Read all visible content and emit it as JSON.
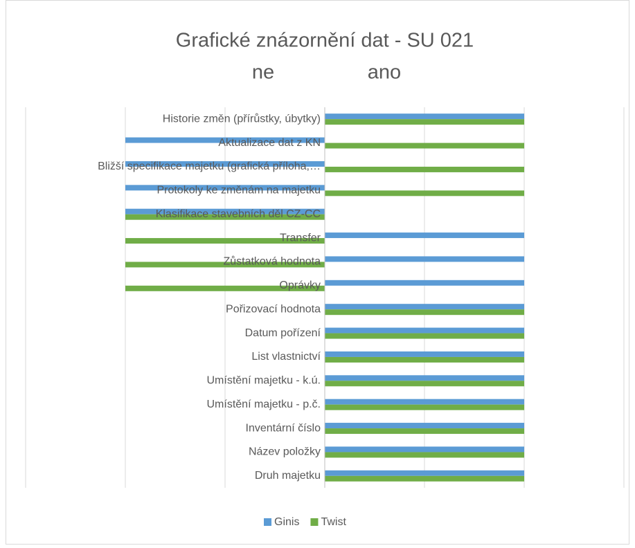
{
  "chart_data": {
    "type": "hbar",
    "title": "Grafické znázornění dat - SU 021",
    "subtitle_left": "ne",
    "subtitle_right": "ano",
    "categories": [
      "Druh majetku",
      "Název položky",
      "Inventární číslo",
      "Umístění majetku - p.č.",
      "Umístění majetku - k.ú.",
      "List vlastnictví",
      "Datum pořízení",
      "Pořizovací hodnota",
      "Oprávky",
      "Zůstatková hodnota",
      "Transfer",
      "Klasifikace stavebních děl CZ-CC",
      "Protokoly ke změnám na majetku",
      "Bližší specifikace majetku (grafická příloha,…",
      "Aktualizace dat z KN",
      "Historie změn (přírůstky, úbytky)"
    ],
    "series": [
      {
        "name": "Ginis",
        "color": "#5b9bd5",
        "values": [
          2,
          2,
          2,
          2,
          2,
          2,
          2,
          2,
          2,
          2,
          2,
          -2,
          -2,
          -2,
          -2,
          2
        ]
      },
      {
        "name": "Twist",
        "color": "#70ad47",
        "values": [
          2,
          2,
          2,
          2,
          2,
          2,
          2,
          2,
          -2,
          -2,
          -2,
          -2,
          2,
          2,
          2,
          2
        ]
      }
    ],
    "xlim": [
      -3,
      3
    ],
    "xticks": [
      -3,
      -2,
      -1,
      0,
      1,
      2,
      3
    ],
    "grid": true,
    "legend": "bottom"
  }
}
